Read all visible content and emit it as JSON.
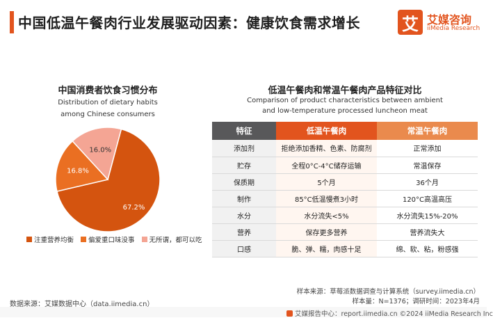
{
  "header": {
    "title": "中国低温午餐肉行业发展驱动因素：健康饮食需求增长"
  },
  "logo": {
    "glyph": "艾",
    "cn": "艾媒咨询",
    "en": "iiMedia Research"
  },
  "left_panel": {
    "title": "中国消费者饮食习惯分布",
    "subtitle_line1": "Distribution of dietary habits",
    "subtitle_line2": "among Chinese consumers"
  },
  "chart_data": {
    "type": "pie",
    "slices": [
      {
        "label": "注重营养均衡",
        "value": 67.2,
        "display": "67.2%",
        "color": "#d4540f"
      },
      {
        "label": "偏爱重口味没事",
        "value": 16.8,
        "display": "16.8%",
        "color": "#ea6f22"
      },
      {
        "label": "无所谓，都可以吃",
        "value": 16.0,
        "display": "16.0%",
        "color": "#f4a594"
      }
    ],
    "legend_position": "bottom"
  },
  "right_panel": {
    "title": "低温午餐肉和常温午餐肉产品特征对比",
    "subtitle_line1": "Comparison of product characteristics between ambient",
    "subtitle_line2": "and low-temperature processed luncheon meat"
  },
  "table": {
    "headers": [
      "特征",
      "低温午餐肉",
      "常温午餐肉"
    ],
    "rows": [
      [
        "添加剂",
        "拒绝添加香精、色素、防腐剂",
        "正常添加"
      ],
      [
        "贮存",
        "全程0°C-4°C储存运输",
        "常温保存"
      ],
      [
        "保质期",
        "5个月",
        "36个月"
      ],
      [
        "制作",
        "85°C低温慢煮3小时",
        "120°C高温高压"
      ],
      [
        "水分",
        "水分流失<5%",
        "水分流失15%-20%"
      ],
      [
        "营养",
        "保存更多营养",
        "营养流失大"
      ],
      [
        "口感",
        "脆、弹、糯，肉感十足",
        "绵、软、粘，粉感强"
      ]
    ]
  },
  "source": {
    "data_source": "数据来源：艾媒数据中心（data.iimedia.cn）",
    "sample_source": "样本来源：草莓派数据调查与计算系统（survey.iimedia.cn）",
    "sample_size": "样本量：N=1376；调研时间：2023年4月"
  },
  "footer": {
    "text": "艾媒报告中心：report.iimedia.cn ©2024  iiMedia Research Inc"
  }
}
